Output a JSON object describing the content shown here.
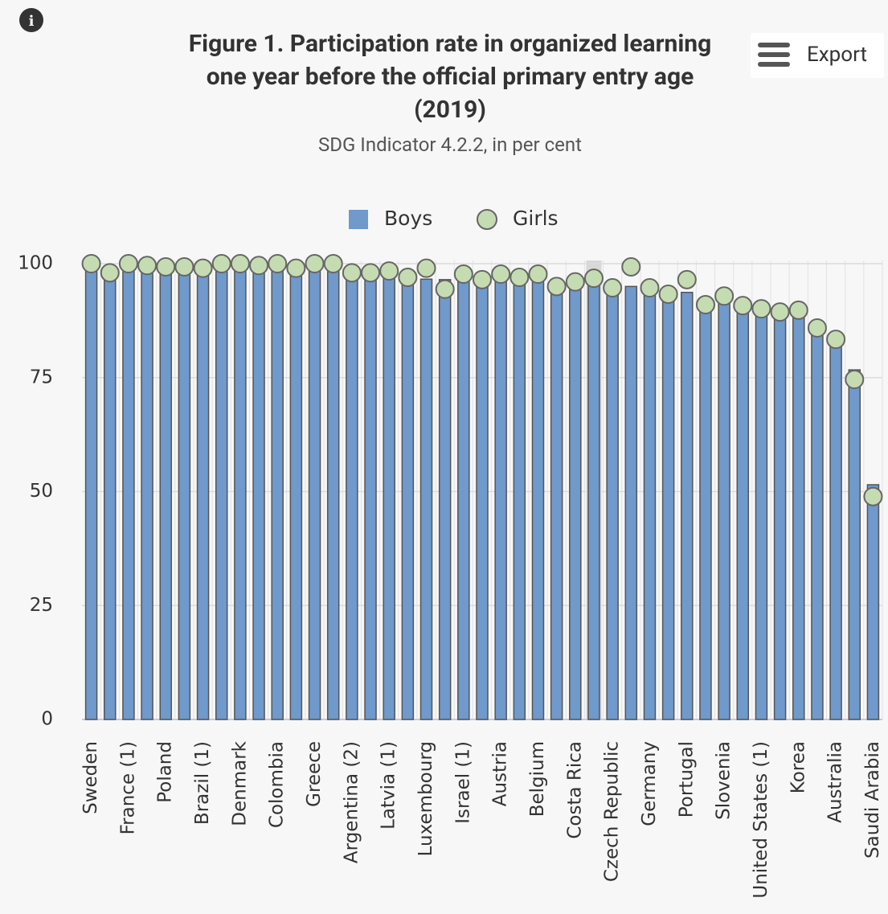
{
  "chart_data": {
    "type": "bar_dot",
    "title": "Figure 1. Participation rate in organized learning one year before the official primary entry age (2019)",
    "subtitle": "SDG Indicator 4.2.2, in per cent",
    "export_label": "Export",
    "categories": [
      "Sweden",
      null,
      "France (1)",
      null,
      "Poland",
      null,
      "Brazil (1)",
      null,
      "Denmark",
      null,
      "Colombia",
      null,
      "Greece",
      null,
      "Argentina (2)",
      null,
      "Latvia (1)",
      null,
      "Luxembourg",
      null,
      "Israel (1)",
      null,
      "Austria",
      null,
      "Belgium",
      null,
      "Costa Rica",
      null,
      "Czech Republic",
      null,
      "Germany",
      null,
      "Portugal",
      null,
      "Slovenia",
      null,
      "United States (1)",
      null,
      "Korea",
      null,
      "Australia",
      null,
      "Saudi Arabia"
    ],
    "series": [
      {
        "name": "Boys",
        "color": "#7099cc",
        "marker": "bar",
        "values": [
          99,
          98,
          99,
          99,
          99,
          99,
          99,
          99,
          99,
          99,
          99,
          98,
          99,
          99,
          98,
          98,
          98,
          97,
          96.6,
          96.5,
          97,
          96,
          97,
          97,
          97,
          95,
          95,
          96,
          95,
          95,
          94,
          93,
          93.7,
          91,
          92,
          91,
          90,
          89,
          89,
          85,
          83,
          76.7,
          51.5
        ]
      },
      {
        "name": "Girls",
        "color": "#c5dcb2",
        "marker": "circle",
        "values": [
          100,
          98,
          100,
          99.6,
          99.3,
          99.3,
          99,
          100,
          100,
          99.6,
          100,
          99,
          100,
          100,
          98,
          98,
          98.4,
          97,
          99,
          94.4,
          97.7,
          96.5,
          97.7,
          97,
          97.7,
          95,
          96,
          96.8,
          94.7,
          99.3,
          94.7,
          93.3,
          96.5,
          91,
          92.9,
          90.8,
          90.1,
          89.4,
          89.8,
          85.9,
          83.4,
          74.6,
          48.9
        ]
      }
    ],
    "ylim": [
      0,
      100
    ],
    "yticks": [
      0,
      25,
      50,
      75,
      100
    ],
    "grid": true,
    "legend": "top"
  }
}
